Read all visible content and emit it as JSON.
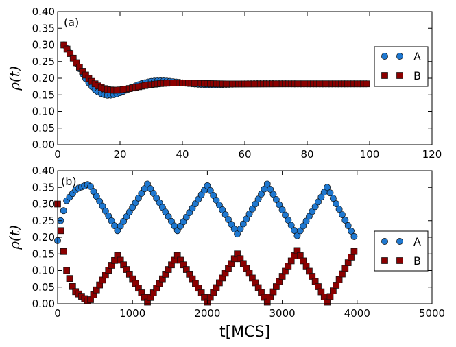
{
  "chart_data": [
    {
      "type": "scatter",
      "panel_label": "(a)",
      "ylabel": "ρ(t)",
      "xlabel": "",
      "xlim": [
        0,
        120
      ],
      "ylim": [
        0,
        0.4
      ],
      "xticks": [
        "0",
        "20",
        "40",
        "60",
        "80",
        "100",
        "120"
      ],
      "yticks": [
        "0.00",
        "0.05",
        "0.10",
        "0.15",
        "0.20",
        "0.25",
        "0.30",
        "0.35",
        "0.40"
      ],
      "legend_position": "right",
      "series": [
        {
          "name": "A",
          "marker": "circle",
          "color": "#1f78d0",
          "model": {
            "type": "damped",
            "x_start": 2,
            "x_end": 99,
            "x_step": 1,
            "base": 0.183,
            "amp": 0.117,
            "decay": 0.08,
            "period": 33,
            "phase": 0
          }
        },
        {
          "name": "B",
          "marker": "square",
          "color": "#8b0000",
          "model": {
            "type": "damped",
            "x_start": 2,
            "x_end": 99,
            "x_step": 1,
            "base": 0.183,
            "amp": 0.117,
            "decay": 0.1,
            "period": 40,
            "phase": 0
          }
        }
      ]
    },
    {
      "type": "scatter",
      "panel_label": "(b)",
      "ylabel": "ρ(t)",
      "xlabel": "t[MCS]",
      "xlim": [
        0,
        5000
      ],
      "ylim": [
        0,
        0.4
      ],
      "xticks": [
        "0",
        "1000",
        "2000",
        "3000",
        "4000",
        "5000"
      ],
      "yticks": [
        "0.00",
        "0.05",
        "0.10",
        "0.15",
        "0.20",
        "0.25",
        "0.30",
        "0.35",
        "0.40"
      ],
      "legend_position": "right",
      "series": [
        {
          "name": "A",
          "marker": "circle",
          "color": "#1f78d0",
          "model": {
            "type": "piecewise",
            "step": 40,
            "points": [
              [
                0,
                0.19
              ],
              [
                40,
                0.25
              ],
              [
                120,
                0.31
              ],
              [
                250,
                0.345
              ],
              [
                420,
                0.36
              ],
              [
                800,
                0.22
              ],
              [
                1200,
                0.36
              ],
              [
                1600,
                0.22
              ],
              [
                2000,
                0.355
              ],
              [
                2400,
                0.21
              ],
              [
                2800,
                0.36
              ],
              [
                3200,
                0.205
              ],
              [
                3600,
                0.35
              ],
              [
                3990,
                0.19
              ]
            ]
          }
        },
        {
          "name": "B",
          "marker": "square",
          "color": "#8b0000",
          "model": {
            "type": "piecewise",
            "step": 40,
            "points": [
              [
                0,
                0.3
              ],
              [
                50,
                0.2
              ],
              [
                120,
                0.1
              ],
              [
                220,
                0.04
              ],
              [
                420,
                0.005
              ],
              [
                800,
                0.145
              ],
              [
                1200,
                0.005
              ],
              [
                1600,
                0.145
              ],
              [
                2000,
                0.005
              ],
              [
                2400,
                0.15
              ],
              [
                2800,
                0.005
              ],
              [
                3200,
                0.16
              ],
              [
                3600,
                0.005
              ],
              [
                3990,
                0.17
              ]
            ]
          }
        }
      ]
    }
  ]
}
